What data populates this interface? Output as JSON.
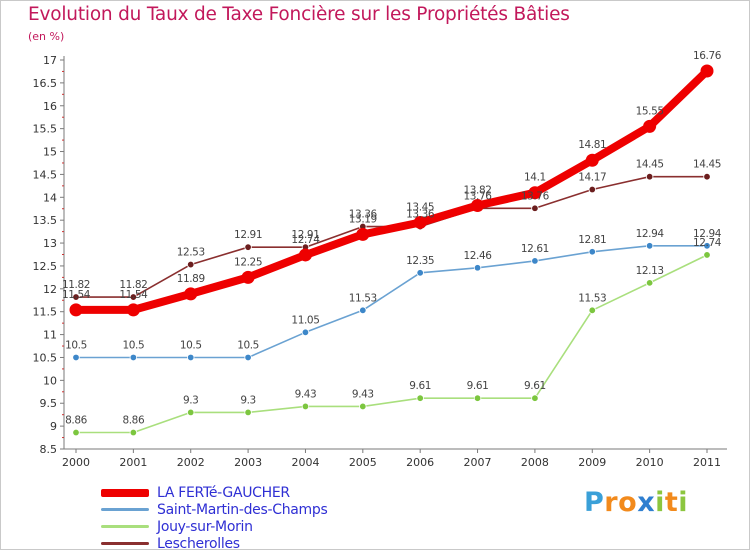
{
  "title": "Evolution du Taux de Taxe Foncière sur les Propriétés Bâties",
  "unit_label": "(en %)",
  "brand": {
    "text": "Proxiti",
    "letters": [
      "P",
      "r",
      "o",
      "x",
      "i",
      "t",
      "i"
    ],
    "letter_colors": [
      "#3aa0d8",
      "#f28a1c",
      "#f28a1c",
      "#2f7fd0",
      "#8cc63f",
      "#f28a1c",
      "#8cc63f"
    ]
  },
  "colors": {
    "title": "#c2185b",
    "axis": "#7a7a7a",
    "value_label": "#444444",
    "legend_text": "#2f2fd4"
  },
  "chart_data": {
    "type": "line",
    "title": "Evolution du Taux de Taxe Foncière sur les Propriétés Bâties",
    "ylabel": "(en %)",
    "xlabel": "",
    "x": [
      "2000",
      "2001",
      "2002",
      "2003",
      "2004",
      "2005",
      "2006",
      "2007",
      "2008",
      "2009",
      "2010",
      "2011"
    ],
    "ylim": [
      8.5,
      17
    ],
    "yticks": [
      "8.5",
      "9",
      "9.5",
      "10",
      "10.5",
      "11",
      "11.5",
      "12",
      "12.5",
      "13",
      "13.5",
      "14",
      "14.5",
      "15",
      "15.5",
      "16",
      "16.5",
      "17"
    ],
    "grid": false,
    "legend_position": "bottom-left",
    "series": [
      {
        "name": "LA FERTé-GAUCHER",
        "color": "#ee0000",
        "marker_color": "#ee0000",
        "emphasis": true,
        "values": [
          11.54,
          11.54,
          11.89,
          12.25,
          12.74,
          13.19,
          13.45,
          13.82,
          14.1,
          14.81,
          15.55,
          16.76
        ],
        "labels": [
          "11.54",
          "11.54",
          "11.89",
          "12.25",
          "12.74",
          "13.19",
          "13.45",
          "13.82",
          "14.1",
          "14.81",
          "15.55",
          "16.76"
        ]
      },
      {
        "name": "Saint-Martin-des-Champs",
        "color": "#6aa2d2",
        "marker_color": "#3d87c9",
        "emphasis": false,
        "values": [
          10.5,
          10.5,
          10.5,
          10.5,
          11.05,
          11.53,
          12.35,
          12.46,
          12.61,
          12.81,
          12.94,
          12.94
        ],
        "labels": [
          "10.5",
          "10.5",
          "10.5",
          "10.5",
          "11.05",
          "11.53",
          "12.35",
          "12.46",
          "12.61",
          "12.81",
          "12.94",
          "12.94"
        ]
      },
      {
        "name": "Jouy-sur-Morin",
        "color": "#a9df7d",
        "marker_color": "#7cc63f",
        "emphasis": false,
        "values": [
          8.86,
          8.86,
          9.3,
          9.3,
          9.43,
          9.43,
          9.61,
          9.61,
          9.61,
          11.53,
          12.13,
          12.74
        ],
        "labels": [
          "8.86",
          "8.86",
          "9.3",
          "9.3",
          "9.43",
          "9.43",
          "9.61",
          "9.61",
          "9.61",
          "11.53",
          "12.13",
          "12.74"
        ]
      },
      {
        "name": "Lescherolles",
        "color": "#8a2f2f",
        "marker_color": "#6b1e1e",
        "emphasis": false,
        "values": [
          11.82,
          11.82,
          12.53,
          12.91,
          12.91,
          13.36,
          13.36,
          13.76,
          13.76,
          14.17,
          14.45,
          14.45
        ],
        "labels": [
          "11.82",
          "11.82",
          "12.53",
          "12.91",
          "12.91",
          "13.36",
          "13.36",
          "13.76",
          "13.76",
          "14.17",
          "14.45",
          "14.45"
        ]
      }
    ]
  }
}
